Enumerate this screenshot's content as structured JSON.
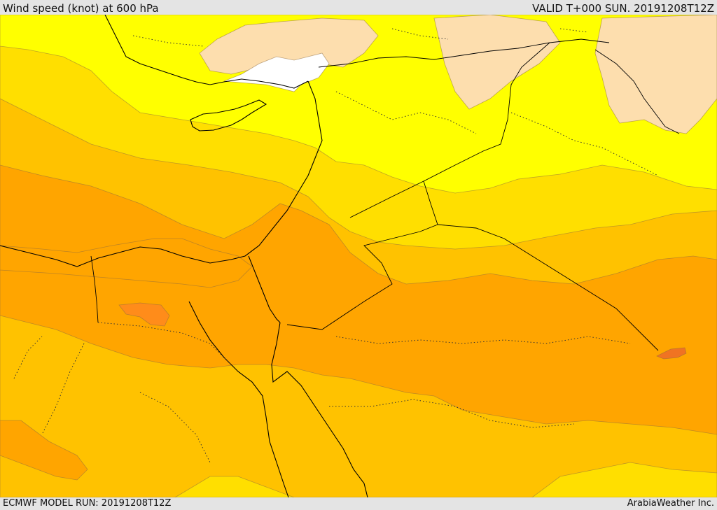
{
  "header": {
    "title": "Wind speed (knot) at 600 hPa",
    "valid": "VALID T+000 SUN. 20191208T12Z"
  },
  "footer": {
    "model_run": "ECMWF MODEL RUN: 20191208T12Z",
    "credit": "ArabiaWeather Inc."
  },
  "colors": {
    "calm_white": "#ffffff",
    "band_peach": "#fddeae",
    "band_yellow": "#ffff00",
    "band_gold": "#ffdf00",
    "band_amber": "#ffc200",
    "band_orange": "#ffa500",
    "band_deep_orange": "#ff8c1a",
    "band_red_orange": "#f07322"
  }
}
